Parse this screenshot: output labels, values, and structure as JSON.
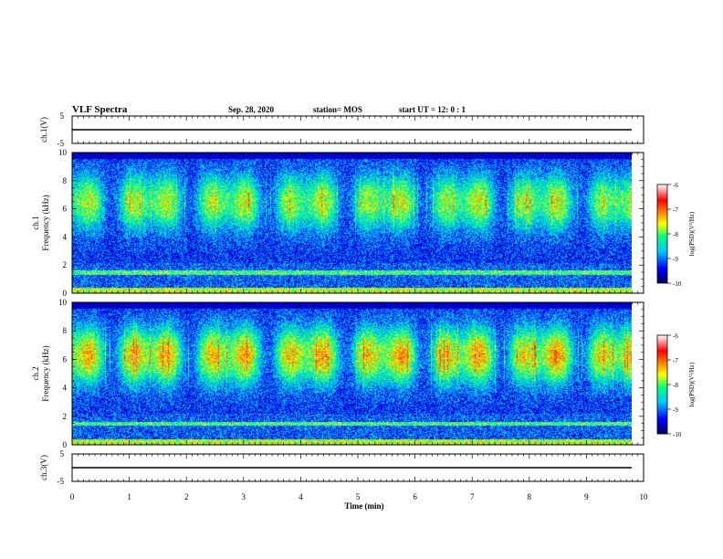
{
  "header": {
    "title": "VLF Spectra",
    "date": "Sep. 28, 2020",
    "station": "station= MOS",
    "start_ut": "start  UT =   12: 0   : 1"
  },
  "colors": {
    "scale": [
      "#00005a",
      "#0000ff",
      "#00c8ff",
      "#00ff80",
      "#ffff00",
      "#ff8000",
      "#ff0000",
      "#ffffff"
    ]
  },
  "chart_data": [
    {
      "type": "line",
      "panel": "ch1-waveform",
      "ylabel": "ch.1(V)",
      "ylim": [
        -5,
        5
      ],
      "yticks": [
        "5",
        "-5"
      ],
      "x": [
        0,
        9.8
      ],
      "y": [
        0,
        0
      ]
    },
    {
      "type": "heatmap",
      "panel": "ch1-spectrogram",
      "ylabel": "ch.1\nFrequency (kHz)",
      "ylim": [
        0,
        10
      ],
      "yticks": [
        "0",
        "2",
        "4",
        "6",
        "8",
        "10"
      ],
      "xlim": [
        0,
        10
      ],
      "data_end_min": 9.8,
      "band_center_khz": 6.5,
      "band_strength": 0.8,
      "colorbar": {
        "label": "log(PSD)(V²/Hz)",
        "ticks": [
          "-6",
          "-7",
          "-8",
          "-9",
          "-10"
        ],
        "range": [
          -10,
          -6
        ]
      }
    },
    {
      "type": "heatmap",
      "panel": "ch2-spectrogram",
      "ylabel": "ch.2\nFrequency (kHz)",
      "ylim": [
        0,
        10
      ],
      "yticks": [
        "0",
        "2",
        "4",
        "6",
        "8",
        "10"
      ],
      "xlim": [
        0,
        10
      ],
      "data_end_min": 9.8,
      "band_center_khz": 6.3,
      "band_strength": 1.0,
      "colorbar": {
        "label": "log(PSD)(V²/Hz)",
        "ticks": [
          "-6",
          "-7",
          "-8",
          "-9",
          "-10"
        ],
        "range": [
          -10,
          -6
        ]
      }
    },
    {
      "type": "line",
      "panel": "ch3-waveform",
      "ylabel": "ch.3(V)",
      "ylim": [
        -5,
        5
      ],
      "yticks": [
        "5",
        "-5"
      ],
      "x": [
        0,
        9.8
      ],
      "y": [
        0,
        0
      ]
    }
  ],
  "x_axis": {
    "label": "Time  (min)",
    "ticks": [
      "0",
      "1",
      "2",
      "3",
      "4",
      "5",
      "6",
      "7",
      "8",
      "9",
      "10"
    ],
    "range": [
      0,
      10
    ]
  }
}
